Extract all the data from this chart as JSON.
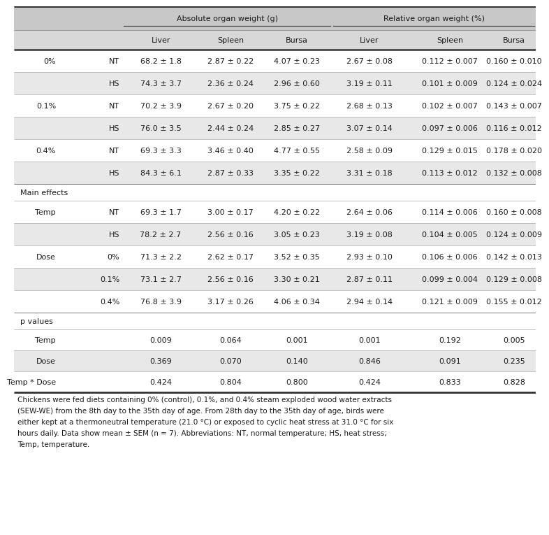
{
  "header1": "Absolute organ weight (g)",
  "header2": "Relative organ weight (%)",
  "col_headers": [
    "Liver",
    "Spleen",
    "Bursa",
    "Liver",
    "Spleen",
    "Bursa"
  ],
  "rows": [
    {
      "col0": "0%",
      "col1": "NT",
      "c2": "68.2 ± 1.8",
      "c3": "2.87 ± 0.22",
      "c4": "4.07 ± 0.23",
      "c5": "2.67 ± 0.08",
      "c6": "0.112 ± 0.007",
      "c7": "0.160 ± 0.010",
      "bg": "white"
    },
    {
      "col0": "",
      "col1": "HS",
      "c2": "74.3 ± 3.7",
      "c3": "2.36 ± 0.24",
      "c4": "2.96 ± 0.60",
      "c5": "3.19 ± 0.11",
      "c6": "0.101 ± 0.009",
      "c7": "0.124 ± 0.024",
      "bg": "light"
    },
    {
      "col0": "0.1%",
      "col1": "NT",
      "c2": "70.2 ± 3.9",
      "c3": "2.67 ± 0.20",
      "c4": "3.75 ± 0.22",
      "c5": "2.68 ± 0.13",
      "c6": "0.102 ± 0.007",
      "c7": "0.143 ± 0.007",
      "bg": "white"
    },
    {
      "col0": "",
      "col1": "HS",
      "c2": "76.0 ± 3.5",
      "c3": "2.44 ± 0.24",
      "c4": "2.85 ± 0.27",
      "c5": "3.07 ± 0.14",
      "c6": "0.097 ± 0.006",
      "c7": "0.116 ± 0.012",
      "bg": "light"
    },
    {
      "col0": "0.4%",
      "col1": "NT",
      "c2": "69.3 ± 3.3",
      "c3": "3.46 ± 0.40",
      "c4": "4.77 ± 0.55",
      "c5": "2.58 ± 0.09",
      "c6": "0.129 ± 0.015",
      "c7": "0.178 ± 0.020",
      "bg": "white"
    },
    {
      "col0": "",
      "col1": "HS",
      "c2": "84.3 ± 6.1",
      "c3": "2.87 ± 0.33",
      "c4": "3.35 ± 0.22",
      "c5": "3.31 ± 0.18",
      "c6": "0.113 ± 0.012",
      "c7": "0.132 ± 0.008",
      "bg": "light"
    }
  ],
  "main_effects_rows": [
    {
      "col0": "Temp",
      "col1": "NT",
      "c2": "69.3 ± 1.7",
      "c3": "3.00 ± 0.17",
      "c4": "4.20 ± 0.22",
      "c5": "2.64 ± 0.06",
      "c6": "0.114 ± 0.006",
      "c7": "0.160 ± 0.008",
      "bg": "white"
    },
    {
      "col0": "",
      "col1": "HS",
      "c2": "78.2 ± 2.7",
      "c3": "2.56 ± 0.16",
      "c4": "3.05 ± 0.23",
      "c5": "3.19 ± 0.08",
      "c6": "0.104 ± 0.005",
      "c7": "0.124 ± 0.009",
      "bg": "light"
    },
    {
      "col0": "Dose",
      "col1": "0%",
      "c2": "71.3 ± 2.2",
      "c3": "2.62 ± 0.17",
      "c4": "3.52 ± 0.35",
      "c5": "2.93 ± 0.10",
      "c6": "0.106 ± 0.006",
      "c7": "0.142 ± 0.013",
      "bg": "white"
    },
    {
      "col0": "",
      "col1": "0.1%",
      "c2": "73.1 ± 2.7",
      "c3": "2.56 ± 0.16",
      "c4": "3.30 ± 0.21",
      "c5": "2.87 ± 0.11",
      "c6": "0.099 ± 0.004",
      "c7": "0.129 ± 0.008",
      "bg": "light"
    },
    {
      "col0": "",
      "col1": "0.4%",
      "c2": "76.8 ± 3.9",
      "c3": "3.17 ± 0.26",
      "c4": "4.06 ± 0.34",
      "c5": "2.94 ± 0.14",
      "c6": "0.121 ± 0.009",
      "c7": "0.155 ± 0.012",
      "bg": "white"
    }
  ],
  "p_rows": [
    {
      "col0": "Temp",
      "c2": "0.009",
      "c3": "0.064",
      "c4": "0.001",
      "c5": "0.001",
      "c6": "0.192",
      "c7": "0.005",
      "bg": "white"
    },
    {
      "col0": "Dose",
      "c2": "0.369",
      "c3": "0.070",
      "c4": "0.140",
      "c5": "0.846",
      "c6": "0.091",
      "c7": "0.235",
      "bg": "light"
    },
    {
      "col0": "Temp * Dose",
      "c2": "0.424",
      "c3": "0.804",
      "c4": "0.800",
      "c5": "0.424",
      "c6": "0.833",
      "c7": "0.828",
      "bg": "white"
    }
  ],
  "footnote_lines": [
    "Chickens were fed diets containing 0% (control), 0.1%, and 0.4% steam exploded wood water extracts",
    "(SEW-WE) from the 8th day to the 35th day of age. From 28th day to the 35th day of age, birds were",
    "either kept at a thermoneutral temperature (21.0 °C) or exposed to cyclic heat stress at 31.0 °C for six",
    "hours daily. Data show mean ± SEM (n = 7). Abbreviations: NT, normal temperature; HS, heat stress;",
    "Temp, temperature."
  ],
  "bg_light": "#e8e8e8",
  "bg_white": "#ffffff",
  "bg_header_top": "#c8c8c8",
  "bg_header_sub": "#d8d8d8",
  "line_color": "#555555",
  "text_color": "#1a1a1a",
  "font_size": 8.0,
  "header_font_size": 8.0,
  "footnote_font_size": 7.5
}
